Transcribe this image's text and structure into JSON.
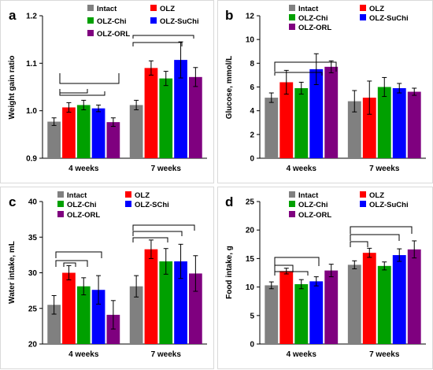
{
  "chart_data": [
    {
      "panel": "a",
      "type": "bar",
      "ylabel": "Weight gain ratio",
      "ylim": [
        0.9,
        1.2
      ],
      "yticks": [
        "0.9",
        "1.0",
        "1.1",
        "1.2"
      ],
      "categories": [
        "4 weeks",
        "7 weeks"
      ],
      "legend": [
        "Intact",
        "OLZ",
        "OLZ-Chi",
        "OLZ-SuChi",
        "OLZ-ORL"
      ],
      "series": [
        {
          "name": "Intact",
          "color": "#808080",
          "values": [
            0.977,
            1.012
          ],
          "errors": [
            0.008,
            0.01
          ]
        },
        {
          "name": "OLZ",
          "color": "#ff0000",
          "values": [
            1.007,
            1.09
          ],
          "errors": [
            0.01,
            0.015
          ]
        },
        {
          "name": "OLZ-Chi",
          "color": "#00a000",
          "values": [
            1.012,
            1.068
          ],
          "errors": [
            0.01,
            0.015
          ]
        },
        {
          "name": "OLZ-SuChi",
          "color": "#0000ff",
          "values": [
            1.005,
            1.107
          ],
          "errors": [
            0.007,
            0.038
          ]
        },
        {
          "name": "OLZ-ORL",
          "color": "#7f007f",
          "values": [
            0.976,
            1.071
          ],
          "errors": [
            0.009,
            0.02
          ]
        }
      ]
    },
    {
      "panel": "b",
      "type": "bar",
      "ylabel": "Glucose, mmol/L",
      "ylim": [
        0,
        12
      ],
      "yticks": [
        "0",
        "2",
        "4",
        "6",
        "8",
        "10",
        "12"
      ],
      "categories": [
        "4 weeks",
        "7 weeks"
      ],
      "legend": [
        "Intact",
        "OLZ",
        "OLZ-Chi",
        "OLZ-SuChi",
        "OLZ-ORL"
      ],
      "series": [
        {
          "name": "Intact",
          "color": "#808080",
          "values": [
            5.1,
            4.8
          ],
          "errors": [
            0.4,
            0.9
          ]
        },
        {
          "name": "OLZ",
          "color": "#ff0000",
          "values": [
            6.4,
            5.1
          ],
          "errors": [
            1.0,
            1.4
          ]
        },
        {
          "name": "OLZ-Chi",
          "color": "#00a000",
          "values": [
            5.9,
            6.0
          ],
          "errors": [
            0.5,
            0.8
          ]
        },
        {
          "name": "OLZ-SuChi",
          "color": "#0000ff",
          "values": [
            7.5,
            5.9
          ],
          "errors": [
            1.3,
            0.4
          ]
        },
        {
          "name": "OLZ-ORL",
          "color": "#7f007f",
          "values": [
            7.7,
            5.6
          ],
          "errors": [
            0.5,
            0.3
          ]
        }
      ]
    },
    {
      "panel": "c",
      "type": "bar",
      "ylabel": "Water intake, mL",
      "ylim": [
        20,
        40
      ],
      "yticks": [
        "20",
        "25",
        "30",
        "35",
        "40"
      ],
      "categories": [
        "4 weeks",
        "7 weeks"
      ],
      "legend": [
        "Intact",
        "OLZ",
        "OLZ-Chi",
        "OLZ-SChi",
        "OLZ-ORL"
      ],
      "series": [
        {
          "name": "Intact",
          "color": "#808080",
          "values": [
            25.5,
            28.1
          ],
          "errors": [
            1.3,
            1.5
          ]
        },
        {
          "name": "OLZ",
          "color": "#ff0000",
          "values": [
            30.0,
            33.3
          ],
          "errors": [
            1.0,
            1.3
          ]
        },
        {
          "name": "OLZ-Chi",
          "color": "#00a000",
          "values": [
            28.1,
            31.6
          ],
          "errors": [
            1.2,
            1.8
          ]
        },
        {
          "name": "OLZ-SChi",
          "color": "#0000ff",
          "values": [
            27.6,
            31.6
          ],
          "errors": [
            2.0,
            2.4
          ]
        },
        {
          "name": "OLZ-ORL",
          "color": "#7f007f",
          "values": [
            24.1,
            29.9
          ],
          "errors": [
            2.0,
            2.5
          ]
        }
      ]
    },
    {
      "panel": "d",
      "type": "bar",
      "ylabel": "Food intake, g",
      "ylim": [
        0,
        25
      ],
      "yticks": [
        "0",
        "5",
        "10",
        "15",
        "20",
        "25"
      ],
      "categories": [
        "4 weeks",
        "7 weeks"
      ],
      "legend": [
        "Intact",
        "OLZ",
        "OLZ-Chi",
        "OLZ-SuChi",
        "OLZ-ORL"
      ],
      "series": [
        {
          "name": "Intact",
          "color": "#808080",
          "values": [
            10.3,
            13.9
          ],
          "errors": [
            0.6,
            0.7
          ]
        },
        {
          "name": "OLZ",
          "color": "#ff0000",
          "values": [
            12.8,
            16.0
          ],
          "errors": [
            0.5,
            0.8
          ]
        },
        {
          "name": "OLZ-Chi",
          "color": "#00a000",
          "values": [
            10.5,
            13.7
          ],
          "errors": [
            0.8,
            0.7
          ]
        },
        {
          "name": "OLZ-SuChi",
          "color": "#0000ff",
          "values": [
            11.0,
            15.6
          ],
          "errors": [
            0.8,
            1.1
          ]
        },
        {
          "name": "OLZ-ORL",
          "color": "#7f007f",
          "values": [
            12.9,
            16.6
          ],
          "errors": [
            1.1,
            1.5
          ]
        }
      ]
    }
  ]
}
